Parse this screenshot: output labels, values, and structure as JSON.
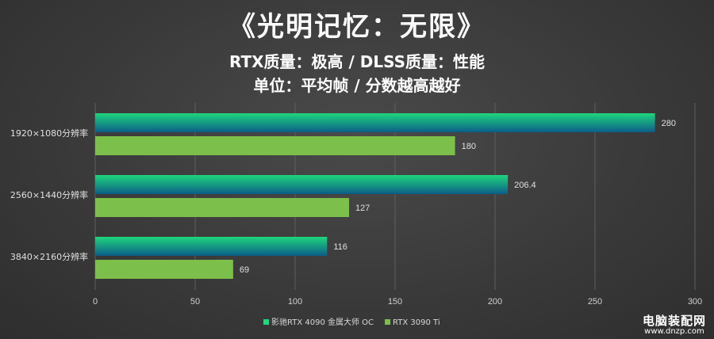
{
  "chart_data": {
    "type": "bar",
    "orientation": "horizontal",
    "title": "《光明记忆：无限》",
    "subtitle_1": "RTX质量：极高 / DLSS质量：性能",
    "subtitle_2": "单位：平均帧 / 分数越高越好",
    "categories": [
      "1920×1080分辨率",
      "2560×1440分辨率",
      "3840×2160分辨率"
    ],
    "series": [
      {
        "name": "影驰RTX 4090 金属大师 OC",
        "values": [
          280,
          206.4,
          116
        ],
        "value_labels": [
          "280",
          "206.4",
          "116"
        ],
        "color_top": "#1fd67d",
        "color_bottom": "#0c5d88"
      },
      {
        "name": "RTX 3090 Ti",
        "values": [
          180,
          127,
          69
        ],
        "value_labels": [
          "180",
          "127",
          "69"
        ],
        "color": "#7cbf4a"
      }
    ],
    "xlim": [
      0,
      300
    ],
    "xticks": [
      0,
      50,
      100,
      150,
      200,
      250,
      300
    ],
    "xtick_labels": [
      "0",
      "50",
      "100",
      "150",
      "200",
      "250",
      "300"
    ],
    "grid": "vertical",
    "legend_position": "bottom-center"
  },
  "watermark": {
    "line1": "电脑装配网",
    "line2": "www.dnzp.com"
  }
}
